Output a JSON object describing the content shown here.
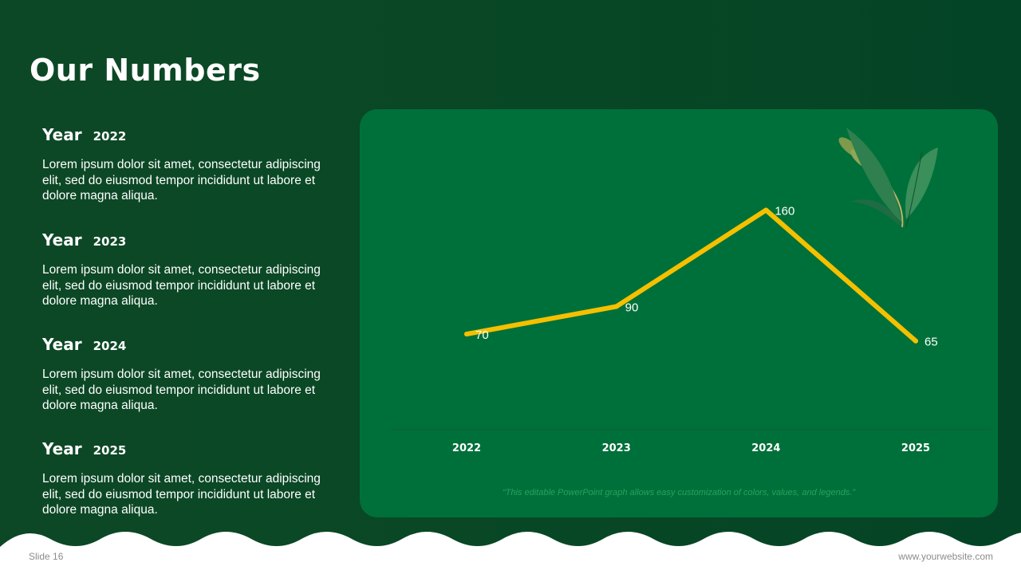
{
  "slide": {
    "title": "Our Numbers",
    "slide_number": "Slide 16",
    "website": "www.yourwebsite.com"
  },
  "years": [
    {
      "label": "Year",
      "year": "2022",
      "text": "Lorem ipsum dolor sit amet, consectetur adipiscing elit, sed do eiusmod tempor incididunt ut labore et dolore magna aliqua."
    },
    {
      "label": "Year",
      "year": "2023",
      "text": "Lorem ipsum dolor sit amet, consectetur adipiscing elit, sed do eiusmod tempor incididunt ut labore et dolore magna aliqua."
    },
    {
      "label": "Year",
      "year": "2024",
      "text": "Lorem ipsum dolor sit amet, consectetur adipiscing elit, sed do eiusmod tempor incididunt ut labore et dolore magna aliqua."
    },
    {
      "label": "Year",
      "year": "2025",
      "text": "Lorem ipsum dolor sit amet, consectetur adipiscing elit, sed do eiusmod tempor incididunt ut labore et dolore magna aliqua."
    }
  ],
  "chart_data": {
    "type": "line",
    "categories": [
      "2022",
      "2023",
      "2024",
      "2025"
    ],
    "values": [
      70,
      90,
      160,
      65
    ],
    "ylim": [
      0,
      180
    ],
    "grid": false,
    "footnote": "“This editable PowerPoint graph allows easy customization of colors, values, and legends.”"
  },
  "colors": {
    "background": "#084725",
    "panel": "#00703a",
    "line": "#f5c000"
  },
  "icons": {
    "decoration": "wheat-icon"
  }
}
